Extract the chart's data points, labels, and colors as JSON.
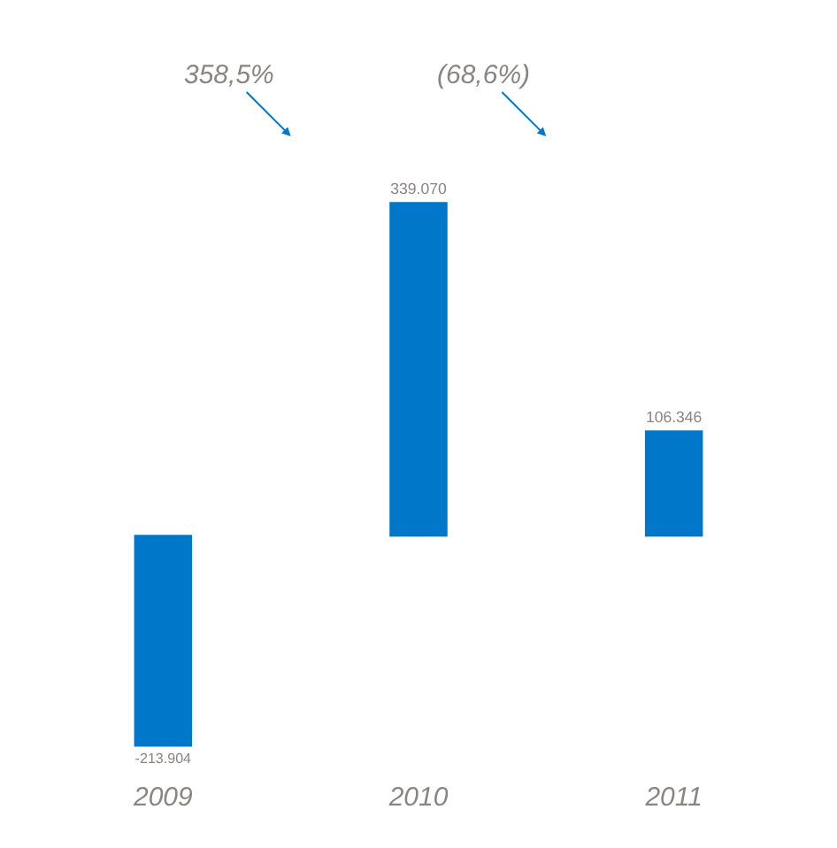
{
  "chart_data": {
    "type": "bar",
    "categories": [
      "2009",
      "2010",
      "2011"
    ],
    "values": [
      -213904,
      339070,
      106346
    ],
    "value_labels": [
      "-213.904",
      "339.070",
      "106.346"
    ],
    "color": "#0077c8",
    "annotations": [
      "358,5%",
      "(68,6%)"
    ]
  }
}
